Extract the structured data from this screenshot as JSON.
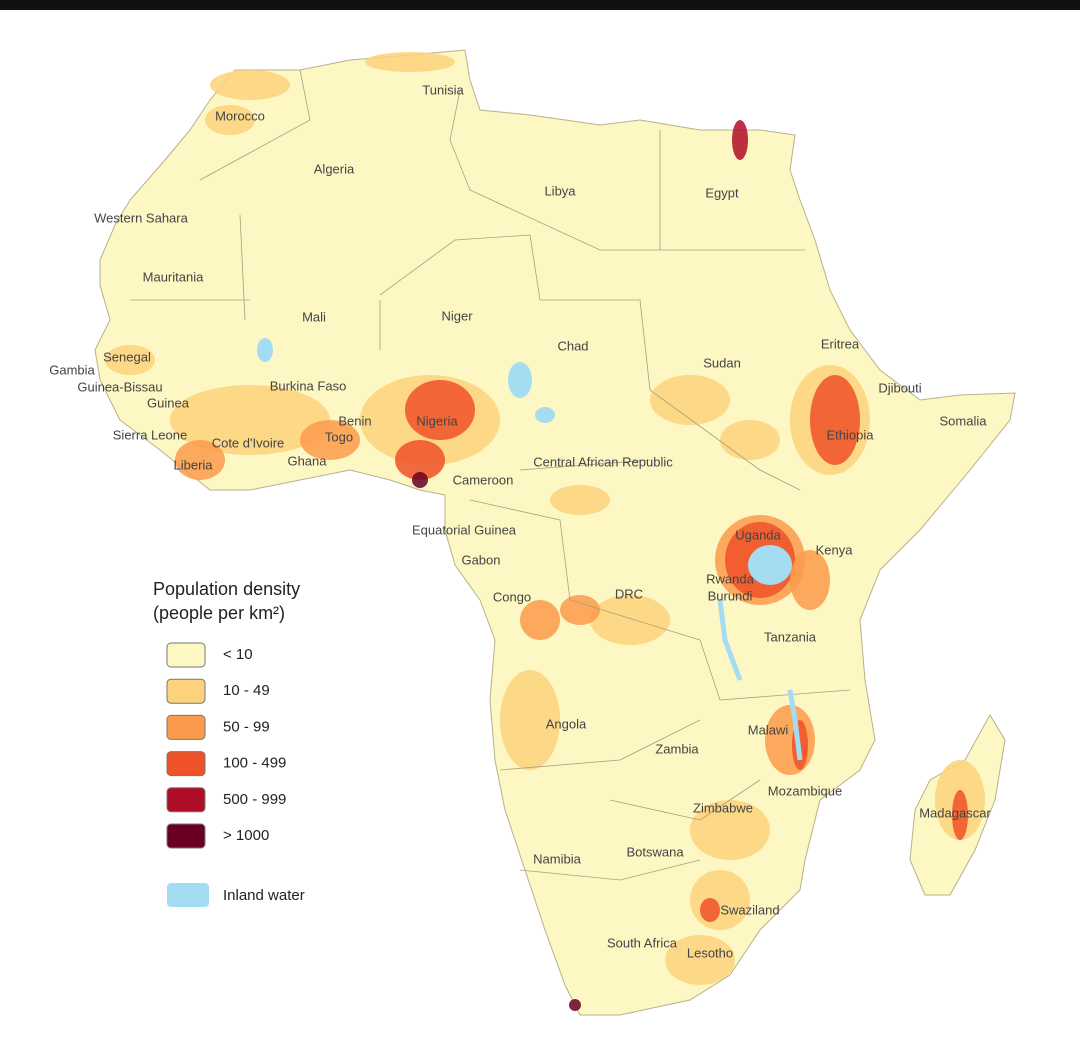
{
  "legend": {
    "title": "Population density",
    "subtitle": "(people per km²)",
    "items": [
      {
        "label": "< 10",
        "color": "#fdf7c3"
      },
      {
        "label": "10 - 49",
        "color": "#fdd27c"
      },
      {
        "label": "50 - 99",
        "color": "#fb9a4b"
      },
      {
        "label": "100 - 499",
        "color": "#ef5128"
      },
      {
        "label": "500 - 999",
        "color": "#b00d26"
      },
      {
        "label": "> 1000",
        "color": "#690021"
      }
    ],
    "water": {
      "label": "Inland water",
      "color": "#a4dcf2"
    }
  },
  "countries": [
    "Tunisia",
    "Morocco",
    "Algeria",
    "Libya",
    "Egypt",
    "Western Sahara",
    "Mauritania",
    "Mali",
    "Niger",
    "Chad",
    "Sudan",
    "Eritrea",
    "Djibouti",
    "Somalia",
    "Ethiopia",
    "Senegal",
    "Gambia",
    "Guinea-Bissau",
    "Guinea",
    "Sierra Leone",
    "Cote d'Ivoire",
    "Liberia",
    "Ghana",
    "Burkina Faso",
    "Benin",
    "Togo",
    "Nigeria",
    "Cameroon",
    "Central African Republic",
    "Equatorial Guinea",
    "Gabon",
    "Congo",
    "DRC",
    "Uganda",
    "Kenya",
    "Rwanda",
    "Burundi",
    "Tanzania",
    "Angola",
    "Zambia",
    "Malawi",
    "Mozambique",
    "Zimbabwe",
    "Madagascar",
    "Namibia",
    "Botswana",
    "Swaziland",
    "South Africa",
    "Lesotho"
  ]
}
